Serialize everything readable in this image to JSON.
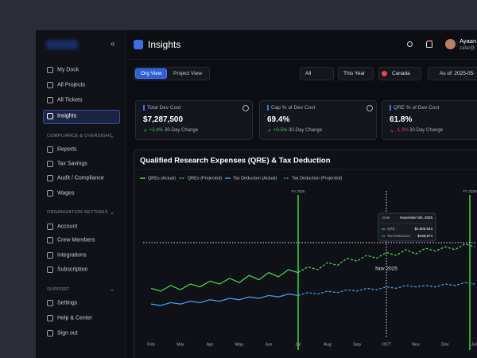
{
  "sidebar": {
    "nav": [
      "My Dock",
      "All Projects",
      "All Tickets",
      "Insights"
    ],
    "sections": [
      {
        "title": "COMPLIANCE & OVERSIGHT",
        "items": [
          "Reports",
          "Tax Savings",
          "Audit / Compliance",
          "Wages"
        ]
      },
      {
        "title": "ORGANIZATION SETTINGS",
        "items": [
          "Account",
          "Crew Members",
          "Integrations",
          "Subscription"
        ]
      },
      {
        "title": "SUPPORT",
        "items": [
          "Settings",
          "Help & Center",
          "Sign out"
        ]
      }
    ]
  },
  "header": {
    "title": "Insights",
    "user_name": "Ayaan",
    "user_email": "zafar@"
  },
  "tabs": [
    "Org View",
    "Project View"
  ],
  "filters": [
    "All",
    "This Year",
    "Canada",
    "As of: 2025-05-"
  ],
  "cards": [
    {
      "label": "Total Dev Cost",
      "value": "$7,287,500",
      "change": "+2.4%",
      "period": "30-Day Change"
    },
    {
      "label": "Cap % of Dev Cost",
      "value": "69.4%",
      "change": "+0.5%",
      "period": "30-Day Change"
    },
    {
      "label": "QRE % of Dev Cost",
      "value": "61.8%",
      "change": "-1.2%",
      "period": "30-Day Change"
    }
  ],
  "chart_data": {
    "type": "line",
    "title": "Qualified Research Expenses (QRE) & Tax Deduction",
    "categories": [
      "Feb",
      null,
      null,
      "Mar",
      null,
      null,
      "Apr",
      null,
      null,
      "May",
      null,
      null,
      "Jun",
      null,
      null,
      "Jul",
      null,
      null,
      "Aug",
      null,
      null,
      "Sep",
      null,
      null,
      "OCT",
      null,
      null,
      "Nov",
      null,
      null,
      "Dec",
      null,
      null,
      "Jan"
    ],
    "series": [
      {
        "name": "QREs (Actual)",
        "color": "#3fd14a",
        "dashed": false,
        "values": [
          32,
          30,
          34,
          31,
          35,
          33,
          37,
          35,
          39,
          36,
          41,
          38,
          43,
          40,
          45,
          43,
          null,
          null,
          null,
          null,
          null,
          null,
          null,
          null,
          null,
          null,
          null,
          null,
          null,
          null,
          null,
          null,
          null,
          null
        ]
      },
      {
        "name": "QREs (Projected)",
        "color": "#3fd14a",
        "dashed": true,
        "values": [
          null,
          null,
          null,
          null,
          null,
          null,
          null,
          null,
          null,
          null,
          null,
          null,
          null,
          null,
          null,
          43,
          47,
          45,
          50,
          48,
          53,
          51,
          55,
          53,
          57,
          55,
          59,
          56,
          60,
          58,
          61,
          59,
          63,
          61
        ]
      },
      {
        "name": "Tax Deduction (Actual)",
        "color": "#3d9be9",
        "dashed": false,
        "values": [
          21,
          20,
          22,
          21,
          23,
          22,
          24,
          23,
          25,
          24,
          26,
          25,
          27,
          26,
          28,
          27,
          null,
          null,
          null,
          null,
          null,
          null,
          null,
          null,
          null,
          null,
          null,
          null,
          null,
          null,
          null,
          null,
          null,
          null
        ]
      },
      {
        "name": "Tax Deduction (Projected)",
        "color": "#3d9be9",
        "dashed": true,
        "values": [
          null,
          null,
          null,
          null,
          null,
          null,
          null,
          null,
          null,
          null,
          null,
          null,
          null,
          null,
          null,
          27,
          29,
          28,
          30,
          29,
          31,
          30,
          32,
          31,
          33,
          32,
          34,
          33,
          34,
          33,
          35,
          34,
          36,
          35
        ]
      }
    ],
    "ylim": [
      0,
      100
    ],
    "annotations": [
      "FY 2025",
      "FY 2026",
      "Nov 2025"
    ],
    "tooltip": {
      "date_label": "Date",
      "date": "November 5th, 2025",
      "rows": [
        {
          "label": "QRE :",
          "value": "$4,800,943"
        },
        {
          "label": "Tax Deduction:",
          "value": "$198,874"
        }
      ]
    }
  }
}
